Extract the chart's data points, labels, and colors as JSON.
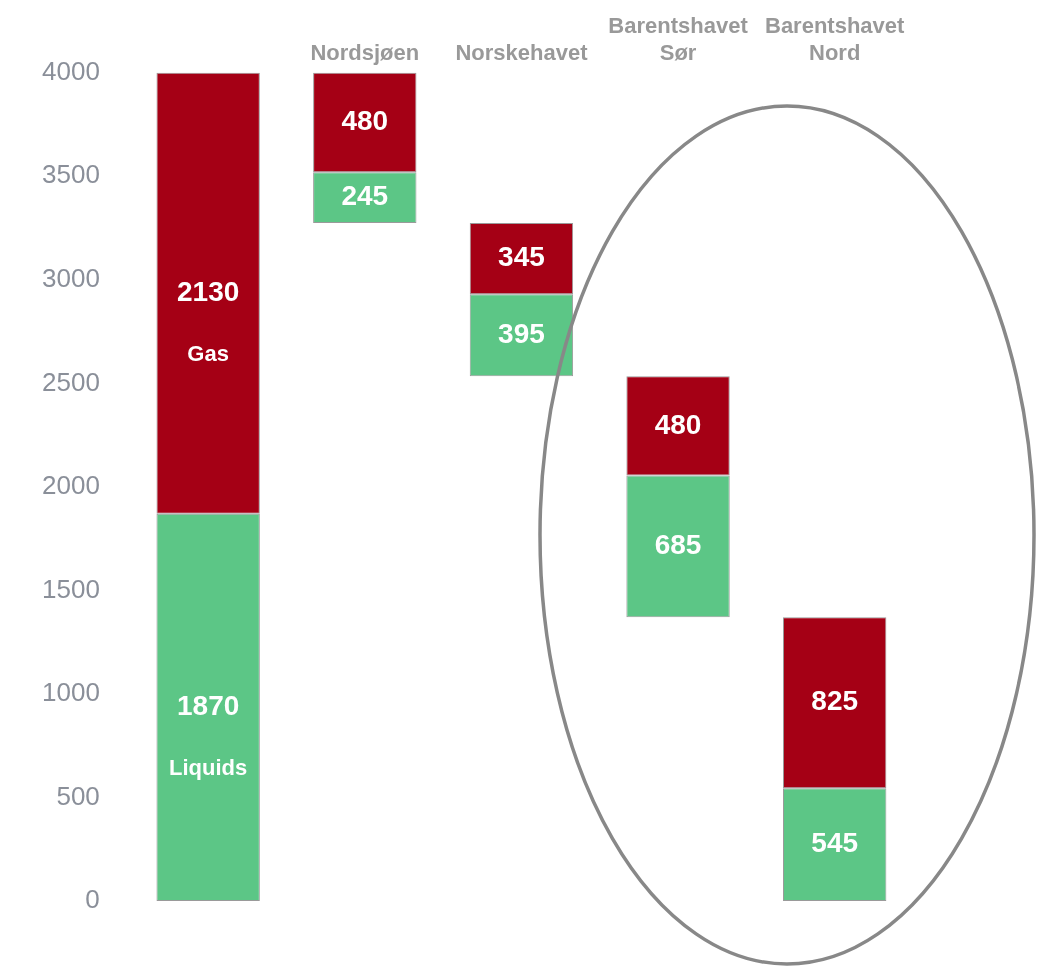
{
  "chart_data": {
    "type": "bar",
    "categories": [
      null,
      "Nordsjøen",
      "Norskehavet",
      "Barentshavet Sør",
      "Barentshavet Nord"
    ],
    "series": [
      {
        "name": "Liquids",
        "color": "#5cc686",
        "values": [
          1870,
          245,
          395,
          685,
          545
        ],
        "base": [
          0,
          3275,
          2535,
          1370,
          0
        ]
      },
      {
        "name": "Gas",
        "color": "#a50015",
        "values": [
          2130,
          480,
          345,
          480,
          825
        ],
        "base": [
          1870,
          3520,
          2930,
          2055,
          545
        ]
      }
    ],
    "ylim": [
      0,
      4000
    ],
    "yticks": [
      0,
      500,
      1000,
      1500,
      2000,
      2500,
      3000,
      3500,
      4000
    ],
    "data_labels": true
  }
}
